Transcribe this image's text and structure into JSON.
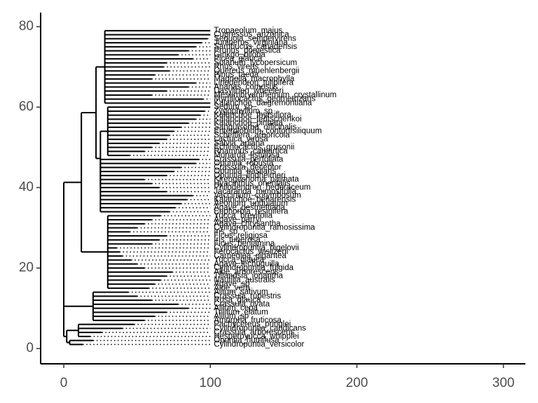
{
  "chart_data": {
    "type": "tree",
    "xlim": [
      -15.8,
      315
    ],
    "xticks": [
      0,
      100,
      200,
      300
    ],
    "ylim": [
      -3.8,
      83.5
    ],
    "yticks": [
      0,
      20,
      40,
      60,
      80
    ],
    "tips": [
      {
        "label": "Cylindropuntia_versicolor",
        "y": 1,
        "x": 13,
        "px": 4
      },
      {
        "label": "Opuntia_humifusa",
        "y": 2,
        "x": 20,
        "px": 4
      },
      {
        "label": "Hesperoyucca_whipplei",
        "y": 3,
        "x": 18,
        "px": 10
      },
      {
        "label": "Crassula_arborescens",
        "y": 4,
        "x": 26,
        "px": 10
      },
      {
        "label": "Cylindropuntia_candicans",
        "y": 5,
        "x": 40,
        "px": 10
      },
      {
        "label": "Pachycereus_pringlei",
        "y": 6,
        "x": 48,
        "px": 10
      },
      {
        "label": "Amorpha_fruticosa",
        "y": 7,
        "x": 55,
        "px": 20
      },
      {
        "label": "Allium_sp",
        "y": 8,
        "x": 62,
        "px": 20
      },
      {
        "label": "Trillium_elatum",
        "y": 9,
        "x": 70,
        "px": 20
      },
      {
        "label": "Allium_cepa",
        "y": 10,
        "x": 85,
        "px": 20
      },
      {
        "label": "Crassula_ovata",
        "y": 11,
        "x": 78,
        "px": 20
      },
      {
        "label": "Rosa_glauca",
        "y": 12,
        "x": 60,
        "px": 20
      },
      {
        "label": "Crassula_rupestris",
        "y": 13,
        "x": 50,
        "px": 20
      },
      {
        "label": "Allium_sativum",
        "y": 14,
        "x": 44,
        "px": 20
      },
      {
        "label": "Aloe_vera",
        "y": 15,
        "x": 58,
        "px": 30
      },
      {
        "label": "Agave_sp",
        "y": 16,
        "x": 62,
        "px": 30
      },
      {
        "label": "Nautilia_australis",
        "y": 17,
        "x": 66,
        "px": 30
      },
      {
        "label": "Tillandsia_ionantha",
        "y": 18,
        "x": 70,
        "px": 30
      },
      {
        "label": "Aloe_arborescens",
        "y": 19,
        "x": 74,
        "px": 30
      },
      {
        "label": "Cylindropuntia_fulgida",
        "y": 20,
        "x": 55,
        "px": 30
      },
      {
        "label": "Agave_lechuguilla",
        "y": 21,
        "x": 50,
        "px": 30
      },
      {
        "label": "Yucca_glauca",
        "y": 22,
        "x": 46,
        "px": 30
      },
      {
        "label": "Carnegiea_gigantea",
        "y": 23,
        "x": 40,
        "px": 30
      },
      {
        "label": "Ferocactus_wislizeni",
        "y": 24,
        "x": 38,
        "px": 30
      },
      {
        "label": "Cylindropuntia_bigelovii",
        "y": 25,
        "x": 36,
        "px": 30
      },
      {
        "label": "Ficus_benjamina",
        "y": 26,
        "x": 60,
        "px": 30
      },
      {
        "label": "Iris_tuberosa",
        "y": 27,
        "x": 65,
        "px": 30
      },
      {
        "label": "Ficus_religiosa",
        "y": 28,
        "x": 70,
        "px": 30
      },
      {
        "label": "Iris_sp",
        "y": 29,
        "x": 45,
        "px": 30
      },
      {
        "label": "Cylindropuntia_ramosissima",
        "y": 30,
        "x": 50,
        "px": 30
      },
      {
        "label": "Agave_chrysantha",
        "y": 31,
        "x": 55,
        "px": 30
      },
      {
        "label": "Agave_parryi",
        "y": 32,
        "x": 60,
        "px": 30
      },
      {
        "label": "Yucca_brevifolia",
        "y": 33,
        "x": 66,
        "px": 30
      },
      {
        "label": "Euphorbia_resinifera",
        "y": 34,
        "x": 72,
        "px": 25
      },
      {
        "label": "Agave_desmettiana",
        "y": 35,
        "x": 76,
        "px": 25
      },
      {
        "label": "Aeonium_undulatum",
        "y": 36,
        "x": 80,
        "px": 25
      },
      {
        "label": "Kalanchoe_beharensis",
        "y": 37,
        "x": 84,
        "px": 25
      },
      {
        "label": "Vaccinium_corymbosum",
        "y": 38,
        "x": 88,
        "px": 25
      },
      {
        "label": "Jacaranda_mimosifolia",
        "y": 39,
        "x": 70,
        "px": 25
      },
      {
        "label": "Philodendron_hederaceum",
        "y": 40,
        "x": 65,
        "px": 25
      },
      {
        "label": "Hyacinthus_orientalis",
        "y": 41,
        "x": 60,
        "px": 25
      },
      {
        "label": "Kirengeshoma_palmata",
        "y": 42,
        "x": 55,
        "px": 25
      },
      {
        "label": "Opuntia_lindheimeri",
        "y": 43,
        "x": 70,
        "px": 25
      },
      {
        "label": "Opuntia_basilaris",
        "y": 44,
        "x": 75,
        "px": 25
      },
      {
        "label": "Crassula_deceptor",
        "y": 45,
        "x": 80,
        "px": 25
      },
      {
        "label": "Opuntia_robusta",
        "y": 46,
        "x": 90,
        "px": 25
      },
      {
        "label": "Crassula_perfoliata",
        "y": 47,
        "x": 92,
        "px": 25
      },
      {
        "label": "Monarda_fistulosa",
        "y": 48,
        "x": 45,
        "px": 30
      },
      {
        "label": "Rhamnus_cathartica",
        "y": 49,
        "x": 55,
        "px": 30
      },
      {
        "label": "Echinocactus_grusonii",
        "y": 50,
        "x": 60,
        "px": 30
      },
      {
        "label": "Salvia_apiana",
        "y": 51,
        "x": 65,
        "px": 30
      },
      {
        "label": "Lactuca_virosa",
        "y": 52,
        "x": 70,
        "px": 30
      },
      {
        "label": "Schefflera_arboricola",
        "y": 53,
        "x": 72,
        "px": 30
      },
      {
        "label": "Enterolobium_contortisiliquum",
        "y": 54,
        "x": 75,
        "px": 30
      },
      {
        "label": "Sanguisorba_officinalis",
        "y": 55,
        "x": 80,
        "px": 30
      },
      {
        "label": "Kalanchoe_pinnata",
        "y": 56,
        "x": 85,
        "px": 30
      },
      {
        "label": "Kalanchoe_fedtschenkoi",
        "y": 57,
        "x": 90,
        "px": 30
      },
      {
        "label": "Kalanchoe_thyrsiflora",
        "y": 58,
        "x": 93,
        "px": 30
      },
      {
        "label": "Zygophyllum_sp",
        "y": 59,
        "x": 96,
        "px": 30
      },
      {
        "label": "Sedum_sp",
        "y": 60,
        "x": 100,
        "px": 30
      },
      {
        "label": "Kalanchoe_daigremontiana",
        "y": 61,
        "x": 100,
        "px": 28
      },
      {
        "label": "Myrtillocactus_geometrizans",
        "y": 62,
        "x": 95,
        "px": 28
      },
      {
        "label": "Mesembryanthemum_crystallinum",
        "y": 63,
        "x": 60,
        "px": 28
      },
      {
        "label": "Dasylirion_wheeleri",
        "y": 64,
        "x": 70,
        "px": 28
      },
      {
        "label": "Ananas_comosus",
        "y": 65,
        "x": 85,
        "px": 28
      },
      {
        "label": "Liriodendron_tulipifera",
        "y": 66,
        "x": 90,
        "px": 28
      },
      {
        "label": "Magnolia_macrophylla",
        "y": 67,
        "x": 60,
        "px": 28
      },
      {
        "label": "Pinus_taeda",
        "y": 68,
        "x": 62,
        "px": 28
      },
      {
        "label": "Quercus_muehlenbergii",
        "y": 69,
        "x": 72,
        "px": 28
      },
      {
        "label": "Rhus_virens",
        "y": 70,
        "x": 68,
        "px": 28
      },
      {
        "label": "Solanum_lycopersicum",
        "y": 71,
        "x": 70,
        "px": 28
      },
      {
        "label": "Picea_glauca",
        "y": 72,
        "x": 88,
        "px": 28
      },
      {
        "label": "Ginkgo_biloba",
        "y": 73,
        "x": 78,
        "px": 28
      },
      {
        "label": "Prunus_domestica",
        "y": 74,
        "x": 85,
        "px": 28
      },
      {
        "label": "Sambucus_canadensis",
        "y": 75,
        "x": 90,
        "px": 28
      },
      {
        "label": "Juniperus_virginiana",
        "y": 76,
        "x": 94,
        "px": 28
      },
      {
        "label": "Sequoia_sempervirens",
        "y": 77,
        "x": 98,
        "px": 28
      },
      {
        "label": "Cupressus_arizonica",
        "y": 78,
        "x": 100,
        "px": 28
      },
      {
        "label": "Tropaeolum_majus",
        "y": 79,
        "x": 100,
        "px": 28
      }
    ],
    "nodes": [
      {
        "x": 0,
        "px": 0,
        "y0": 3,
        "y1": 41.3
      },
      {
        "x": 2,
        "px": 0,
        "y0": 1.5,
        "y1": 4.5
      },
      {
        "x": 4,
        "px": 2,
        "y0": 1,
        "y1": 2
      },
      {
        "x": 10,
        "px": 2,
        "y0": 3,
        "y1": 6
      },
      {
        "x": 20,
        "px": 0,
        "y0": 7,
        "y1": 14
      },
      {
        "x": 12,
        "px": 0,
        "y0": 24,
        "y1": 58.6
      },
      {
        "x": 30,
        "px": 12,
        "y0": 15,
        "y1": 33
      },
      {
        "x": 22,
        "px": 12,
        "y0": 47.25,
        "y1": 70
      },
      {
        "x": 25,
        "px": 22,
        "y0": 40.5,
        "y1": 54
      },
      {
        "x": 25,
        "px": 25,
        "y0": 34,
        "y1": 47
      },
      {
        "x": 30,
        "px": 25,
        "y0": 48,
        "y1": 60
      },
      {
        "x": 28,
        "px": 22,
        "y0": 61,
        "y1": 79
      }
    ]
  }
}
